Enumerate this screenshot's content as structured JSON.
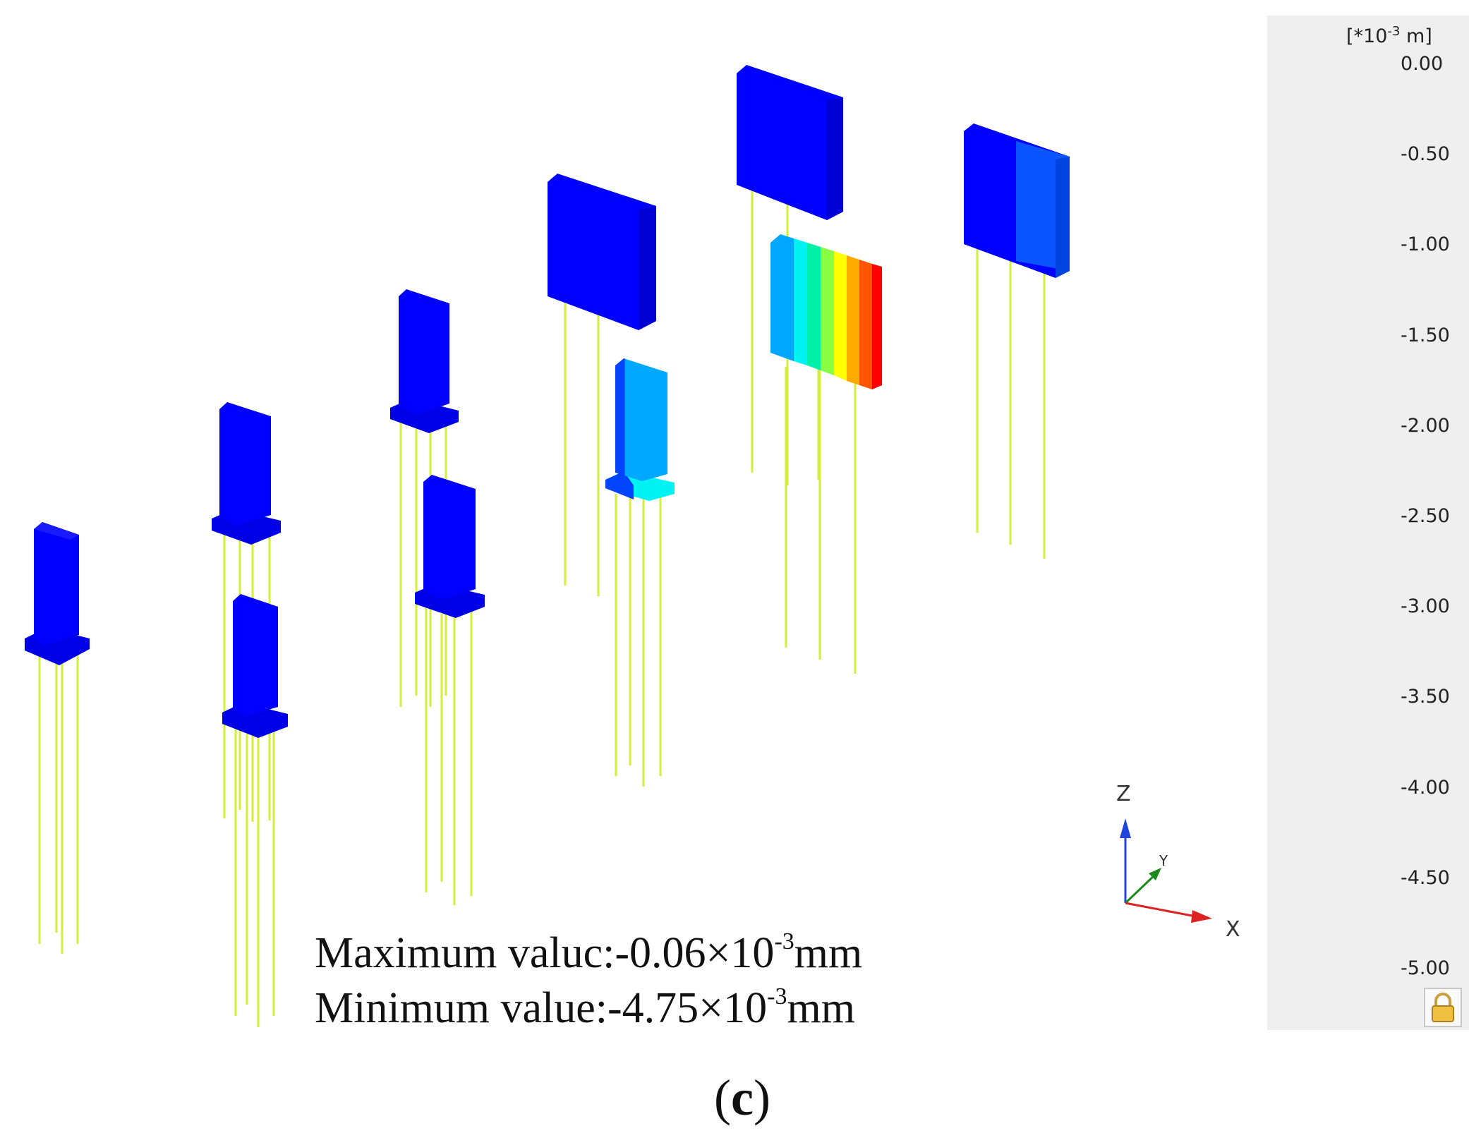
{
  "legend": {
    "unit_prefix": "[*10",
    "unit_exp": "-3",
    "unit_suffix": "m]",
    "ticks": [
      "0.00",
      "-0.50",
      "-1.00",
      "-1.50",
      "-2.00",
      "-2.50",
      "-3.00",
      "-3.50",
      "-4.00",
      "-4.50",
      "-5.00"
    ],
    "colors": [
      "#0000ff",
      "#0044ff",
      "#00a8ff",
      "#00f2f2",
      "#00f0a8",
      "#88ff40",
      "#ffff00",
      "#ffaa00",
      "#ff5500",
      "#ff0000"
    ]
  },
  "results": {
    "max_label": "Maximum valuc:",
    "max_value": "-0.06×10",
    "max_exp": "-3",
    "max_unit": "mm",
    "min_label": "Minimum value:",
    "min_value": "-4.75×10",
    "min_exp": "-3",
    "min_unit": "mm"
  },
  "subfigure": {
    "label": "c",
    "open": "(",
    "close": ")"
  },
  "axes": {
    "z": "Z",
    "y": "Y",
    "x": "X"
  },
  "colors": {
    "pile": "#d4ef3a",
    "pile_dark": "#b8d62a",
    "edge": "#000088"
  }
}
